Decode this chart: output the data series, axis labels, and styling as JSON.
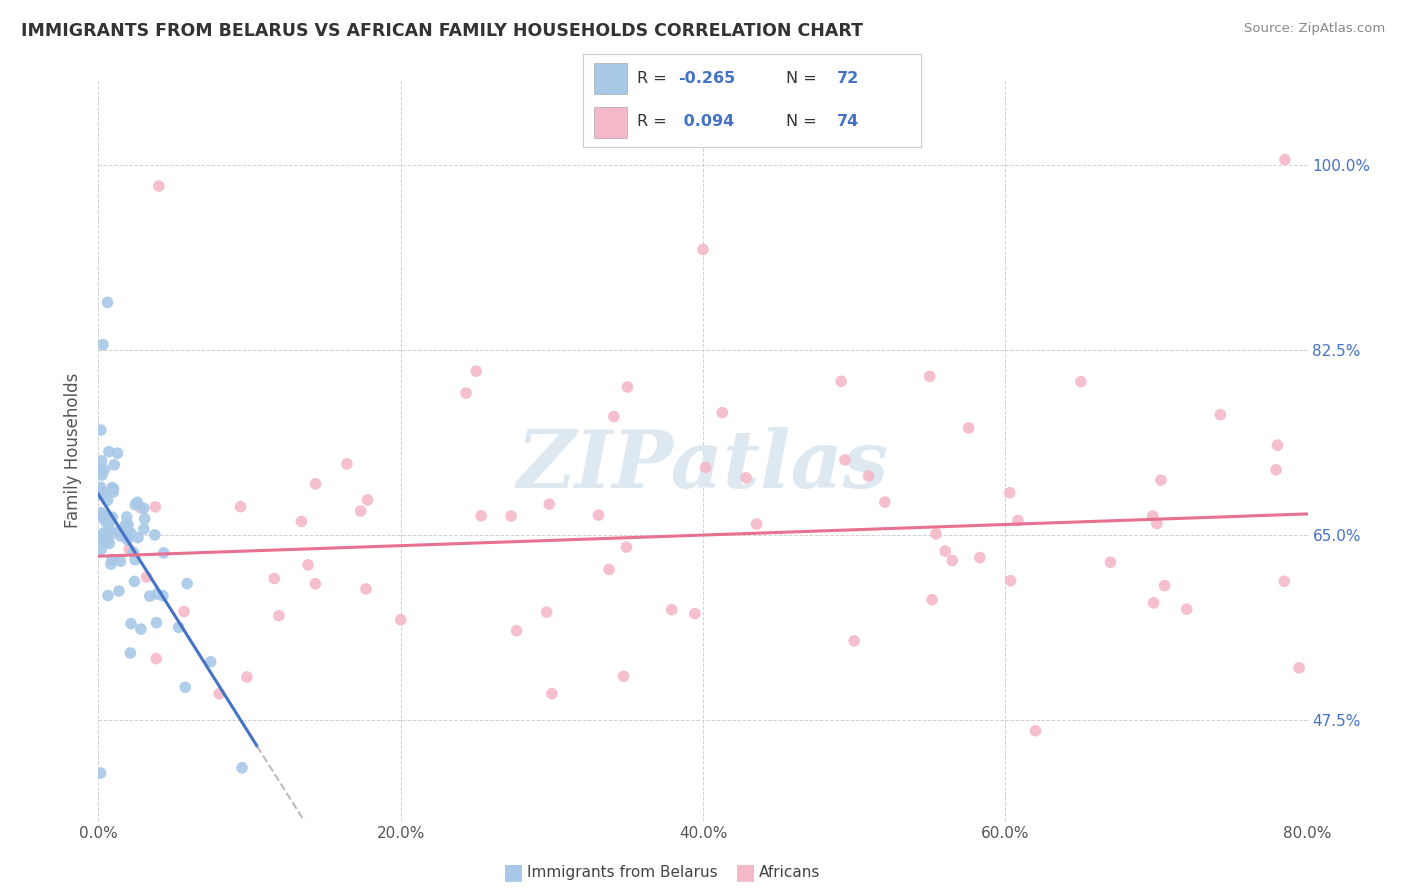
{
  "title": "IMMIGRANTS FROM BELARUS VS AFRICAN FAMILY HOUSEHOLDS CORRELATION CHART",
  "source": "Source: ZipAtlas.com",
  "ylabel": "Family Households",
  "ytick_values": [
    47.5,
    65.0,
    82.5,
    100.0
  ],
  "xlim": [
    0.0,
    80.0
  ],
  "ylim": [
    38.0,
    108.0
  ],
  "legend_label_blue": "Immigrants from Belarus",
  "legend_label_pink": "Africans",
  "color_blue": "#a8c8e8",
  "color_pink": "#f5b8c8",
  "color_blue_line": "#4472c4",
  "color_pink_line": "#e87090",
  "color_dashed_line": "#bbbbbb",
  "title_color": "#333333",
  "source_color": "#888888",
  "watermark": "ZIPatlas",
  "watermark_color": "#dde8f0",
  "r_value_color": "#4472c4",
  "legend_text_color": "#333333"
}
